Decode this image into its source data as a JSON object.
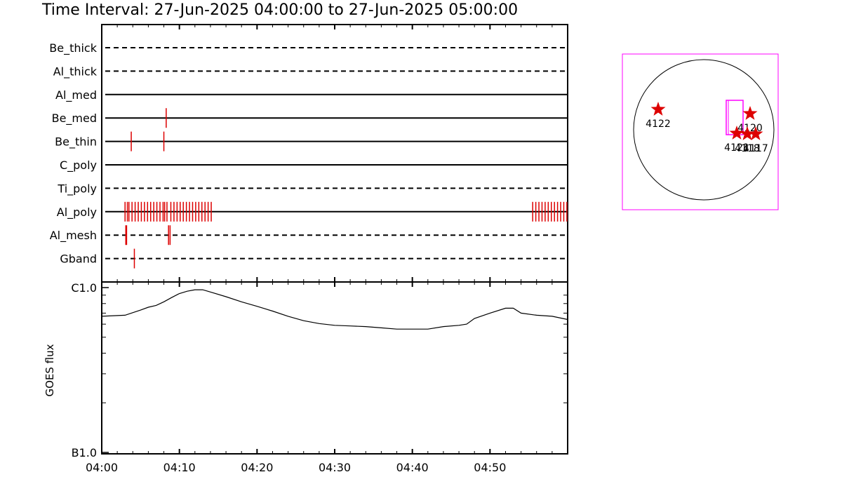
{
  "title": "Time Interval: 27-Jun-2025 04:00:00 to 27-Jun-2025 05:00:00",
  "colors": {
    "event": "#dd0000",
    "fov": "#ff00ff",
    "axis": "#000000"
  },
  "chart_data": [
    {
      "type": "timeline",
      "x_range_minutes": [
        0,
        60
      ],
      "x_ticks": [
        "04:00",
        "04:10",
        "04:20",
        "04:30",
        "04:40",
        "04:50"
      ],
      "rows": [
        {
          "label": "Be_thick",
          "line": "dashed",
          "events": []
        },
        {
          "label": "Al_thick",
          "line": "dashed",
          "events": []
        },
        {
          "label": "Al_med",
          "line": "solid",
          "events": []
        },
        {
          "label": "Be_med",
          "line": "solid",
          "events": [
            8.3
          ]
        },
        {
          "label": "Be_thin",
          "line": "solid",
          "events": [
            3.8,
            8.0
          ]
        },
        {
          "label": "C_poly",
          "line": "solid",
          "events": []
        },
        {
          "label": "Ti_poly",
          "line": "dashed",
          "events": []
        },
        {
          "label": "Al_poly",
          "line": "solid",
          "events": [
            3.0,
            3.3,
            3.5,
            3.9,
            4.3,
            4.7,
            5.1,
            5.5,
            5.9,
            6.3,
            6.7,
            7.1,
            7.5,
            7.9,
            8.1,
            8.4,
            8.9,
            9.3,
            9.7,
            10.1,
            10.5,
            10.9,
            11.3,
            11.7,
            12.1,
            12.5,
            12.9,
            13.3,
            13.7,
            14.1,
            55.5,
            55.9,
            56.3,
            56.7,
            57.1,
            57.5,
            57.9,
            58.3,
            58.7,
            59.1,
            59.5,
            59.9
          ]
        },
        {
          "label": "Al_mesh",
          "line": "dashed",
          "events": [
            3.1,
            3.2,
            8.6,
            8.8
          ]
        },
        {
          "label": "Gband",
          "line": "dashed",
          "events": [
            4.2
          ]
        }
      ]
    },
    {
      "type": "line",
      "ylabel": "GOES flux",
      "y_scale": "log",
      "y_tick_labels": [
        "C1.0",
        "B1.0"
      ],
      "ylim": [
        1e-07,
        1e-06
      ],
      "x_range_minutes": [
        0,
        60
      ],
      "x_ticks": [
        "04:00",
        "04:10",
        "04:20",
        "04:30",
        "04:40",
        "04:50"
      ],
      "series": [
        {
          "x": [
            0,
            3,
            5,
            6,
            7,
            8,
            9,
            10,
            11,
            12,
            13,
            14,
            16,
            18,
            20,
            22,
            24,
            26,
            28,
            30,
            32,
            34,
            36,
            38,
            40,
            42,
            44,
            46,
            47,
            48,
            50,
            52,
            53,
            54,
            56,
            58,
            60
          ],
          "y": [
            6.7e-07,
            6.8e-07,
            7.3e-07,
            7.6e-07,
            7.8e-07,
            8.2e-07,
            8.7e-07,
            9.2e-07,
            9.5e-07,
            9.7e-07,
            9.7e-07,
            9.4e-07,
            8.8e-07,
            8.2e-07,
            7.7e-07,
            7.2e-07,
            6.7e-07,
            6.3e-07,
            6.05e-07,
            5.9e-07,
            5.85e-07,
            5.8e-07,
            5.7e-07,
            5.6e-07,
            5.6e-07,
            5.6e-07,
            5.8e-07,
            5.9e-07,
            6e-07,
            6.5e-07,
            7e-07,
            7.5e-07,
            7.5e-07,
            7e-07,
            6.8e-07,
            6.7e-07,
            6.4e-07
          ]
        }
      ]
    },
    {
      "type": "map",
      "regions": [
        {
          "label": "4122",
          "x": -0.65,
          "y": 0.29
        },
        {
          "label": "4120",
          "x": 0.66,
          "y": 0.23
        },
        {
          "label": "4121",
          "x": 0.47,
          "y": -0.05
        },
        {
          "label": "4118",
          "x": 0.62,
          "y": -0.06
        },
        {
          "label": "4117",
          "x": 0.74,
          "y": -0.06
        }
      ],
      "fov_box": {
        "x0": 0.32,
        "x1": 0.56,
        "y0": -0.07,
        "y1": 0.42
      }
    }
  ]
}
